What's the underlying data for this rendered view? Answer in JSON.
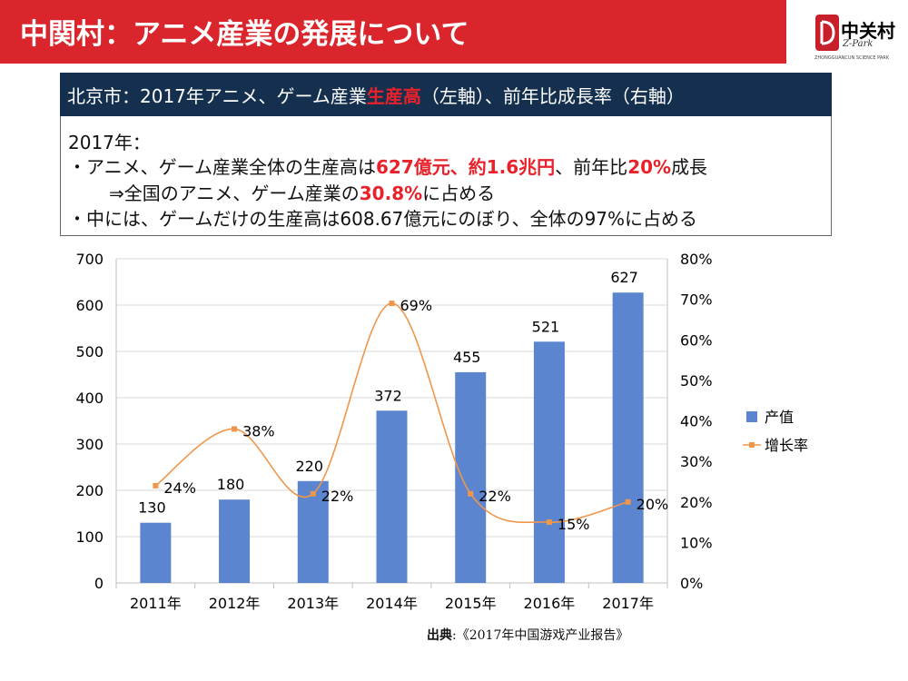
{
  "header": {
    "title": "中関村：アニメ産業の発展について",
    "logo_text_zh": "中关村",
    "logo_text_brand": "Z-Park",
    "logo_text_full": "ZHONGGUANCUN SCIENCE PARK",
    "accent_color": "#d9252b"
  },
  "info": {
    "header_prefix": "北京市：2017年アニメ、ゲーム産業",
    "header_highlight": "生産高",
    "header_suffix": "（左軸）、前年比成長率（右軸）",
    "year_line": "2017年：",
    "bullet1_a": "・アニメ、ゲーム産業全体の生産高は",
    "bullet1_b": "627億元、約1.6兆円",
    "bullet1_c": "、前年比",
    "bullet1_d": "20%",
    "bullet1_e": "成長",
    "sub1_a": "⇒全国のアニメ、ゲーム産業の",
    "sub1_b": "30.8%",
    "sub1_c": "に占める",
    "bullet2": "・中には、ゲームだけの生産高は608.67億元にのぼり、全体の97%に占める"
  },
  "source": {
    "label": "出典",
    "text": ":《2017年中国游戏产业报告》"
  },
  "chart_data": {
    "type": "bar",
    "categories": [
      "2011年",
      "2012年",
      "2013年",
      "2014年",
      "2015年",
      "2016年",
      "2017年"
    ],
    "series": [
      {
        "name": "产值",
        "type": "bar",
        "axis": "left",
        "color": "#5b86cf",
        "values": [
          130,
          180,
          220,
          372,
          455,
          521,
          627
        ],
        "labels": [
          "130",
          "180",
          "220",
          "372",
          "455",
          "521",
          "627"
        ]
      },
      {
        "name": "增长率",
        "type": "line",
        "axis": "right",
        "color": "#f0964a",
        "smooth": true,
        "values": [
          24,
          38,
          22,
          69,
          22,
          15,
          20
        ],
        "labels": [
          "24%",
          "38%",
          "22%",
          "69%",
          "22%",
          "15%",
          "20%"
        ]
      }
    ],
    "y_left": {
      "min": 0,
      "max": 700,
      "step": 100,
      "ticks": [
        "0",
        "100",
        "200",
        "300",
        "400",
        "500",
        "600",
        "700"
      ]
    },
    "y_right": {
      "min": 0,
      "max": 80,
      "step": 10,
      "ticks": [
        "0%",
        "10%",
        "20%",
        "30%",
        "40%",
        "50%",
        "60%",
        "70%",
        "80%"
      ]
    },
    "grid": true,
    "legend_position": "right"
  }
}
